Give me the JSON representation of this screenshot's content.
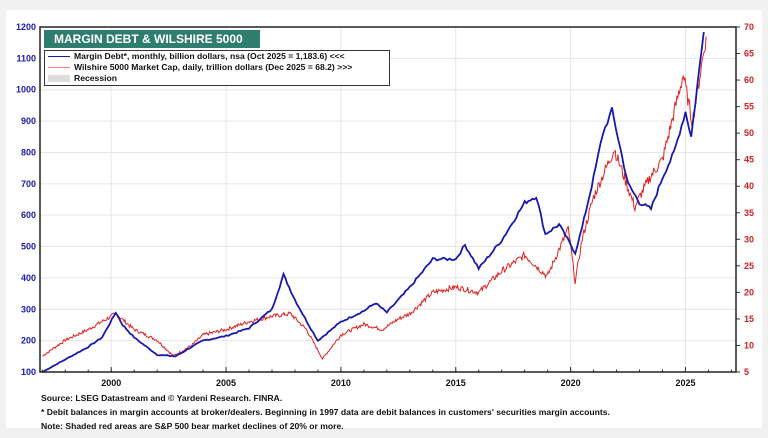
{
  "chart_data": {
    "type": "line",
    "title": "MARGIN DEBT & WILSHIRE 5000",
    "xlim": [
      1996.9,
      2027.2
    ],
    "x_ticks": [
      2000,
      2005,
      2010,
      2015,
      2020,
      2025
    ],
    "y_left": {
      "ticks": [
        100,
        200,
        300,
        400,
        500,
        600,
        700,
        800,
        900,
        1000,
        1100,
        1200
      ],
      "range": [
        100,
        1200
      ],
      "color": "#1a1aaa"
    },
    "y_right": {
      "ticks": [
        5,
        10,
        15,
        20,
        25,
        30,
        35,
        40,
        45,
        50,
        55,
        60,
        65,
        70
      ],
      "range": [
        5,
        70
      ],
      "color": "#cc2222"
    },
    "grid": true,
    "legend_placement": "top-left",
    "legend": [
      "Margin Debt*, monthly, billion dollars, nsa (Oct 2025 = 1,183.6) <<<",
      "Wilshire 5000 Market Cap, daily, trillion dollars  (Dec 2025 = 68.2) >>>",
      "Recession"
    ],
    "series": [
      {
        "name": "Margin Debt*",
        "axis": "left",
        "color": "#1a1aaa",
        "x": [
          1997.0,
          1998.0,
          1999.0,
          1999.6,
          2000.2,
          2000.5,
          2001.0,
          2002.0,
          2002.8,
          2003.5,
          2004.0,
          2005.0,
          2006.0,
          2007.0,
          2007.5,
          2008.0,
          2008.6,
          2009.0,
          2010.0,
          2011.0,
          2011.5,
          2012.0,
          2013.0,
          2014.0,
          2015.0,
          2015.4,
          2016.0,
          2017.0,
          2018.0,
          2018.5,
          2018.9,
          2019.5,
          2020.2,
          2020.5,
          2021.0,
          2021.4,
          2021.8,
          2022.5,
          2023.0,
          2023.5,
          2024.0,
          2024.5,
          2025.0,
          2025.25,
          2025.8
        ],
        "y": [
          100,
          140,
          180,
          210,
          290,
          250,
          210,
          155,
          150,
          180,
          200,
          215,
          240,
          300,
          410,
          330,
          250,
          200,
          260,
          295,
          320,
          290,
          370,
          460,
          460,
          505,
          430,
          520,
          640,
          660,
          540,
          570,
          480,
          560,
          720,
          860,
          935,
          700,
          640,
          620,
          720,
          800,
          930,
          850,
          1184
        ]
      },
      {
        "name": "Wilshire 5000 Market Cap",
        "axis": "right",
        "color": "#e02222",
        "x": [
          1997.0,
          1998.0,
          1999.0,
          2000.2,
          2001.0,
          2002.0,
          2002.7,
          2003.5,
          2004.0,
          2005.0,
          2006.0,
          2007.0,
          2007.8,
          2008.5,
          2009.2,
          2010.0,
          2011.0,
          2011.8,
          2012.5,
          2013.0,
          2014.0,
          2015.0,
          2016.0,
          2017.0,
          2018.0,
          2018.98,
          2019.9,
          2020.2,
          2020.5,
          2021.0,
          2021.9,
          2022.8,
          2023.0,
          2023.5,
          2024.0,
          2024.9,
          2025.3,
          2025.9
        ],
        "y": [
          8,
          11,
          13,
          16,
          13,
          11,
          8,
          10,
          12,
          13,
          14.5,
          15.5,
          16,
          13,
          7.5,
          12,
          14,
          13,
          15,
          16,
          20,
          21,
          20,
          24,
          27,
          23,
          32,
          22,
          30,
          38,
          47,
          36,
          38,
          42,
          45,
          61,
          52,
          68.2
        ]
      }
    ],
    "notes": [
      "Source: LSEG Datastream and © Yardeni Research. FINRA.",
      "* Debit balances in margin accounts at broker/dealers. Beginning in 1997 data are debit balances in customers' securities margin accounts.",
      "Note: Shaded red areas are S&P 500 bear market declines of 20% or more."
    ]
  }
}
